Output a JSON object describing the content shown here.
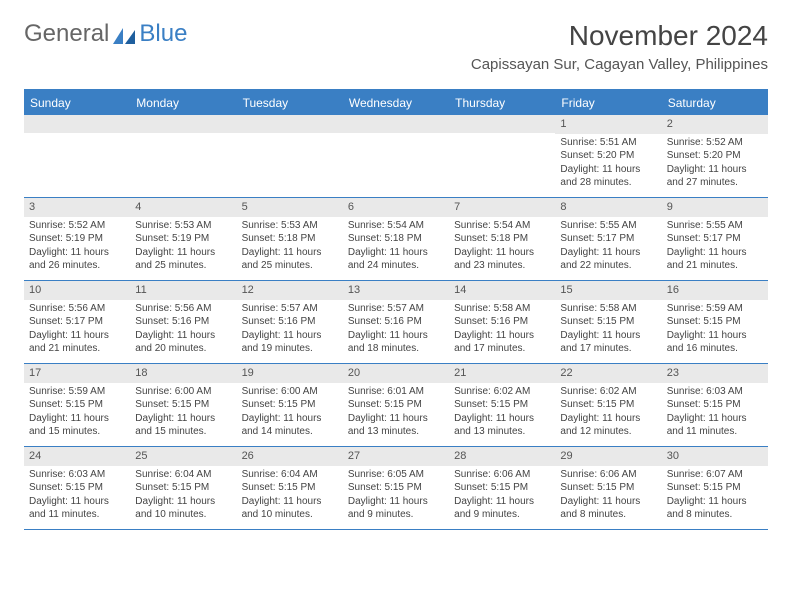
{
  "logo": {
    "part1": "General",
    "part2": "Blue"
  },
  "title": "November 2024",
  "location": "Capissayan Sur, Cagayan Valley, Philippines",
  "weekdays": [
    "Sunday",
    "Monday",
    "Tuesday",
    "Wednesday",
    "Thursday",
    "Friday",
    "Saturday"
  ],
  "colors": {
    "header_bg": "#3a7fc4",
    "daynum_bg": "#e9e9e9",
    "text": "#444444",
    "border": "#3a7fc4"
  },
  "typography": {
    "title_fontsize": 28,
    "location_fontsize": 15,
    "weekday_fontsize": 12,
    "cell_fontsize": 10
  },
  "weeks": [
    [
      {
        "n": "",
        "sr": "",
        "ss": "",
        "dl": ""
      },
      {
        "n": "",
        "sr": "",
        "ss": "",
        "dl": ""
      },
      {
        "n": "",
        "sr": "",
        "ss": "",
        "dl": ""
      },
      {
        "n": "",
        "sr": "",
        "ss": "",
        "dl": ""
      },
      {
        "n": "",
        "sr": "",
        "ss": "",
        "dl": ""
      },
      {
        "n": "1",
        "sr": "Sunrise: 5:51 AM",
        "ss": "Sunset: 5:20 PM",
        "dl": "Daylight: 11 hours and 28 minutes."
      },
      {
        "n": "2",
        "sr": "Sunrise: 5:52 AM",
        "ss": "Sunset: 5:20 PM",
        "dl": "Daylight: 11 hours and 27 minutes."
      }
    ],
    [
      {
        "n": "3",
        "sr": "Sunrise: 5:52 AM",
        "ss": "Sunset: 5:19 PM",
        "dl": "Daylight: 11 hours and 26 minutes."
      },
      {
        "n": "4",
        "sr": "Sunrise: 5:53 AM",
        "ss": "Sunset: 5:19 PM",
        "dl": "Daylight: 11 hours and 25 minutes."
      },
      {
        "n": "5",
        "sr": "Sunrise: 5:53 AM",
        "ss": "Sunset: 5:18 PM",
        "dl": "Daylight: 11 hours and 25 minutes."
      },
      {
        "n": "6",
        "sr": "Sunrise: 5:54 AM",
        "ss": "Sunset: 5:18 PM",
        "dl": "Daylight: 11 hours and 24 minutes."
      },
      {
        "n": "7",
        "sr": "Sunrise: 5:54 AM",
        "ss": "Sunset: 5:18 PM",
        "dl": "Daylight: 11 hours and 23 minutes."
      },
      {
        "n": "8",
        "sr": "Sunrise: 5:55 AM",
        "ss": "Sunset: 5:17 PM",
        "dl": "Daylight: 11 hours and 22 minutes."
      },
      {
        "n": "9",
        "sr": "Sunrise: 5:55 AM",
        "ss": "Sunset: 5:17 PM",
        "dl": "Daylight: 11 hours and 21 minutes."
      }
    ],
    [
      {
        "n": "10",
        "sr": "Sunrise: 5:56 AM",
        "ss": "Sunset: 5:17 PM",
        "dl": "Daylight: 11 hours and 21 minutes."
      },
      {
        "n": "11",
        "sr": "Sunrise: 5:56 AM",
        "ss": "Sunset: 5:16 PM",
        "dl": "Daylight: 11 hours and 20 minutes."
      },
      {
        "n": "12",
        "sr": "Sunrise: 5:57 AM",
        "ss": "Sunset: 5:16 PM",
        "dl": "Daylight: 11 hours and 19 minutes."
      },
      {
        "n": "13",
        "sr": "Sunrise: 5:57 AM",
        "ss": "Sunset: 5:16 PM",
        "dl": "Daylight: 11 hours and 18 minutes."
      },
      {
        "n": "14",
        "sr": "Sunrise: 5:58 AM",
        "ss": "Sunset: 5:16 PM",
        "dl": "Daylight: 11 hours and 17 minutes."
      },
      {
        "n": "15",
        "sr": "Sunrise: 5:58 AM",
        "ss": "Sunset: 5:15 PM",
        "dl": "Daylight: 11 hours and 17 minutes."
      },
      {
        "n": "16",
        "sr": "Sunrise: 5:59 AM",
        "ss": "Sunset: 5:15 PM",
        "dl": "Daylight: 11 hours and 16 minutes."
      }
    ],
    [
      {
        "n": "17",
        "sr": "Sunrise: 5:59 AM",
        "ss": "Sunset: 5:15 PM",
        "dl": "Daylight: 11 hours and 15 minutes."
      },
      {
        "n": "18",
        "sr": "Sunrise: 6:00 AM",
        "ss": "Sunset: 5:15 PM",
        "dl": "Daylight: 11 hours and 15 minutes."
      },
      {
        "n": "19",
        "sr": "Sunrise: 6:00 AM",
        "ss": "Sunset: 5:15 PM",
        "dl": "Daylight: 11 hours and 14 minutes."
      },
      {
        "n": "20",
        "sr": "Sunrise: 6:01 AM",
        "ss": "Sunset: 5:15 PM",
        "dl": "Daylight: 11 hours and 13 minutes."
      },
      {
        "n": "21",
        "sr": "Sunrise: 6:02 AM",
        "ss": "Sunset: 5:15 PM",
        "dl": "Daylight: 11 hours and 13 minutes."
      },
      {
        "n": "22",
        "sr": "Sunrise: 6:02 AM",
        "ss": "Sunset: 5:15 PM",
        "dl": "Daylight: 11 hours and 12 minutes."
      },
      {
        "n": "23",
        "sr": "Sunrise: 6:03 AM",
        "ss": "Sunset: 5:15 PM",
        "dl": "Daylight: 11 hours and 11 minutes."
      }
    ],
    [
      {
        "n": "24",
        "sr": "Sunrise: 6:03 AM",
        "ss": "Sunset: 5:15 PM",
        "dl": "Daylight: 11 hours and 11 minutes."
      },
      {
        "n": "25",
        "sr": "Sunrise: 6:04 AM",
        "ss": "Sunset: 5:15 PM",
        "dl": "Daylight: 11 hours and 10 minutes."
      },
      {
        "n": "26",
        "sr": "Sunrise: 6:04 AM",
        "ss": "Sunset: 5:15 PM",
        "dl": "Daylight: 11 hours and 10 minutes."
      },
      {
        "n": "27",
        "sr": "Sunrise: 6:05 AM",
        "ss": "Sunset: 5:15 PM",
        "dl": "Daylight: 11 hours and 9 minutes."
      },
      {
        "n": "28",
        "sr": "Sunrise: 6:06 AM",
        "ss": "Sunset: 5:15 PM",
        "dl": "Daylight: 11 hours and 9 minutes."
      },
      {
        "n": "29",
        "sr": "Sunrise: 6:06 AM",
        "ss": "Sunset: 5:15 PM",
        "dl": "Daylight: 11 hours and 8 minutes."
      },
      {
        "n": "30",
        "sr": "Sunrise: 6:07 AM",
        "ss": "Sunset: 5:15 PM",
        "dl": "Daylight: 11 hours and 8 minutes."
      }
    ]
  ]
}
